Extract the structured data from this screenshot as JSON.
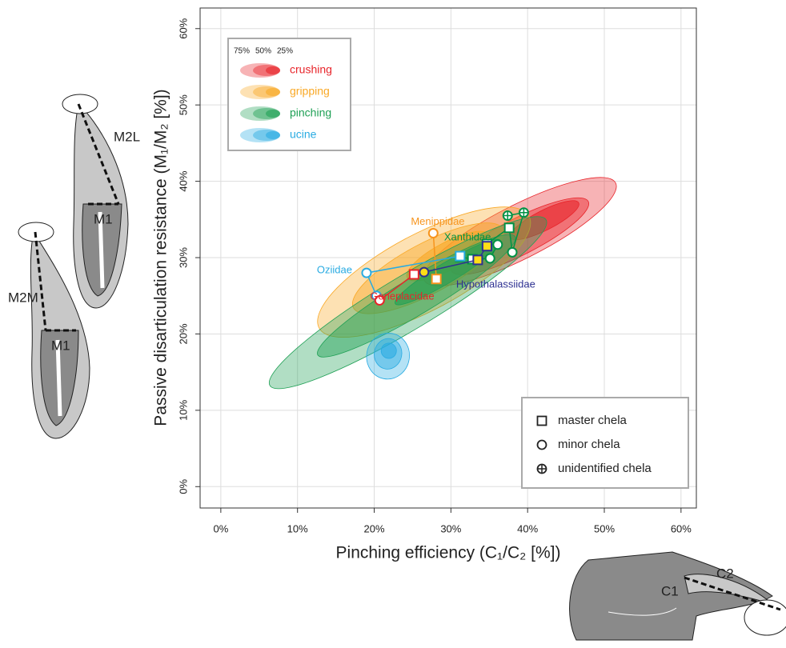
{
  "chart_data": {
    "type": "contour-scatter",
    "x_label": "Pinching efficiency (C₁/C₂ [%])",
    "y_label": "Passive disarticulation resistance (M₁/M₂ [%])",
    "xlim": [
      -2.7,
      62
    ],
    "ylim": [
      -2.8,
      62.7
    ],
    "grid": true,
    "xticks": [
      {
        "value": 0,
        "label": "0%"
      },
      {
        "value": 10,
        "label": "10%"
      },
      {
        "value": 20,
        "label": "20%"
      },
      {
        "value": 30,
        "label": "30%"
      },
      {
        "value": 40,
        "label": "40%"
      },
      {
        "value": 50,
        "label": "50%"
      },
      {
        "value": 60,
        "label": "60%"
      }
    ],
    "yticks": [
      {
        "value": 0,
        "label": "0%"
      },
      {
        "value": 10,
        "label": "10%"
      },
      {
        "value": 20,
        "label": "20%"
      },
      {
        "value": 30,
        "label": "30%"
      },
      {
        "value": 40,
        "label": "40%"
      },
      {
        "value": 50,
        "label": "50%"
      },
      {
        "value": 60,
        "label": "60%"
      }
    ],
    "level_labels": [
      "75%",
      "50%",
      "25%"
    ],
    "groups": [
      {
        "name": "crushing",
        "color": "#e8242a",
        "levels": [
          {
            "cx": 39.0,
            "cy": 33.4,
            "rx": 14,
            "ry": 3.5,
            "angle": 27
          },
          {
            "cx": 39.0,
            "cy": 32.8,
            "rx": 10,
            "ry": 2.4,
            "angle": 27
          },
          {
            "cx": 42.2,
            "cy": 34.9,
            "rx": 5,
            "ry": 1.3,
            "angle": 27
          }
        ]
      },
      {
        "name": "gripping",
        "color": "#f9a825",
        "levels": [
          {
            "cx": 26.5,
            "cy": 28.1,
            "rx": 15.5,
            "ry": 5,
            "angle": 28
          },
          {
            "cx": 27.0,
            "cy": 28.6,
            "rx": 11,
            "ry": 3.3,
            "angle": 28
          },
          {
            "cx": 29.6,
            "cy": 30.2,
            "rx": 6,
            "ry": 1.8,
            "angle": 28
          }
        ]
      },
      {
        "name": "pinching",
        "color": "#1fa055",
        "levels": [
          {
            "cx": 24.4,
            "cy": 24.1,
            "rx": 21,
            "ry": 3.5,
            "angle": 31
          },
          {
            "cx": 25.5,
            "cy": 25.0,
            "rx": 15,
            "ry": 2.4,
            "angle": 31
          },
          {
            "cx": 29.6,
            "cy": 28.1,
            "rx": 8,
            "ry": 1.3,
            "angle": 31
          }
        ]
      },
      {
        "name": "ucine",
        "color": "#29abe2",
        "levels": [
          {
            "cx": 21.8,
            "cy": 17.1,
            "rx": 3,
            "ry": 2.8,
            "angle": 80
          },
          {
            "cx": 21.8,
            "cy": 17.4,
            "rx": 2,
            "ry": 1.8,
            "angle": 80
          },
          {
            "cx": 21.9,
            "cy": 17.8,
            "rx": 1,
            "ry": 1,
            "angle": 80
          }
        ]
      }
    ],
    "series": [
      {
        "name": "Xanthidae",
        "color": "#009245",
        "x": [
          31.2,
          32.8,
          35.1,
          36.1,
          34.7,
          37.6,
          38.0,
          39.5,
          37.4
        ],
        "values": [
          30.1,
          29.8,
          29.9,
          31.7,
          31.8,
          33.9,
          30.7,
          35.9,
          35.5
        ],
        "markers": [
          "square",
          "square",
          "circle",
          "circle",
          "square",
          "square",
          "circle",
          "crossed",
          "crossed"
        ]
      },
      {
        "name": "Menippidae",
        "color": "#f7941d",
        "x": [
          27.7,
          28.1
        ],
        "values": [
          33.2,
          27.2
        ],
        "markers": [
          "circle",
          "square"
        ]
      },
      {
        "name": "Oziidae",
        "color": "#29abe2",
        "x": [
          20.3,
          19.0,
          31.2
        ],
        "values": [
          25.0,
          28.0,
          30.2
        ],
        "markers": [
          "circle",
          "circle",
          "square"
        ]
      },
      {
        "name": "Hypothalassiidae",
        "color": "#2e3192",
        "x": [
          26.5,
          33.5,
          34.7
        ],
        "values": [
          28.1,
          29.7,
          31.5
        ],
        "markers": [
          "circle",
          "square",
          "square"
        ],
        "fill": "#ffde17"
      },
      {
        "name": "Goneplacidae",
        "color": "#e8242a",
        "x": [
          25.2,
          20.7
        ],
        "values": [
          27.8,
          24.4
        ],
        "markers": [
          "square",
          "circle"
        ]
      }
    ],
    "marker_legend": [
      {
        "marker": "square",
        "label": "master chela"
      },
      {
        "marker": "circle",
        "label": "minor chela"
      },
      {
        "marker": "crossed",
        "label": "unidentified chela"
      }
    ],
    "diagram_labels": [
      "M2L",
      "M1",
      "M2M",
      "M1",
      "C1",
      "C2"
    ]
  }
}
